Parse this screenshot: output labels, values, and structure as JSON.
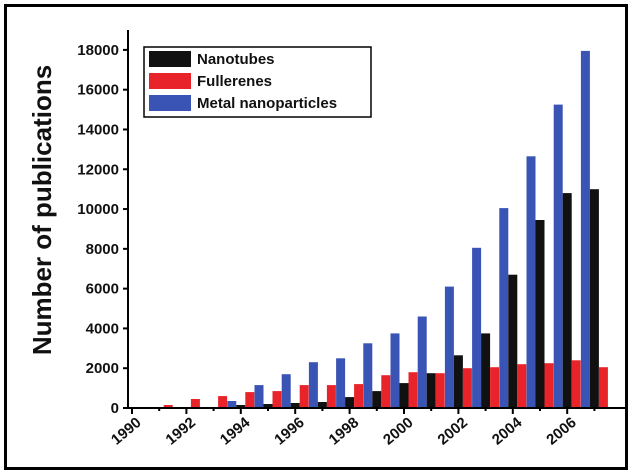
{
  "chart_data": {
    "type": "bar",
    "ylabel": "Number of publications",
    "xlabel": "",
    "ylim": [
      0,
      19000
    ],
    "yticks": [
      0,
      2000,
      4000,
      6000,
      8000,
      10000,
      12000,
      14000,
      16000,
      18000
    ],
    "xtick_labels": [
      "1990",
      "1992",
      "1994",
      "1996",
      "1998",
      "2000",
      "2002",
      "2004",
      "2006"
    ],
    "categories": [
      1990,
      1991,
      1992,
      1993,
      1994,
      1995,
      1996,
      1997,
      1998,
      1999,
      2000,
      2001,
      2002,
      2003,
      2004,
      2005,
      2006,
      2007
    ],
    "series": [
      {
        "name": "Nanotubes",
        "color": "#111111",
        "values": [
          0,
          0,
          0,
          0,
          150,
          200,
          250,
          300,
          550,
          850,
          1250,
          1750,
          2650,
          3750,
          6700,
          9450,
          10800,
          11000
        ]
      },
      {
        "name": "Fullerenes",
        "color": "#e8242a",
        "values": [
          0,
          150,
          450,
          600,
          800,
          850,
          1150,
          1150,
          1200,
          1650,
          1800,
          1750,
          2000,
          2050,
          2200,
          2250,
          2400,
          2050
        ]
      },
      {
        "name": "Metal nanoparticles",
        "color": "#3a54b6",
        "values": [
          0,
          0,
          0,
          0,
          350,
          1150,
          1700,
          2300,
          2500,
          3250,
          3750,
          4600,
          6100,
          8050,
          10050,
          12650,
          15250,
          17950
        ]
      }
    ],
    "legend_position": "top-left",
    "grid": false
  }
}
